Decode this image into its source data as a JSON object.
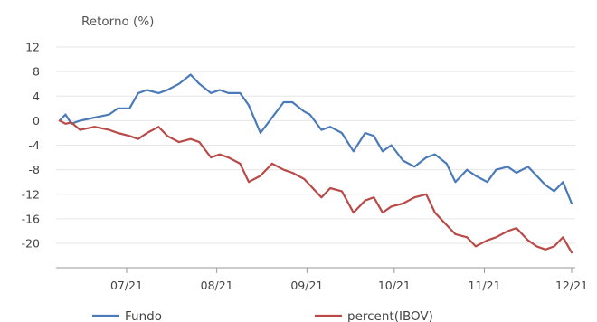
{
  "chart_data": {
    "type": "line",
    "title": "Retorno (%)",
    "xlabel": "",
    "ylabel": "",
    "ylim": [
      -22.5,
      12
    ],
    "yticks": [
      12,
      8,
      4,
      0,
      -4,
      -8,
      -12,
      -16,
      -20
    ],
    "ytick_labels": [
      "12",
      "8",
      "4",
      "0",
      "-4",
      "-8",
      "-12",
      "-16",
      "-20"
    ],
    "xlim": [
      "2021-06-08",
      "2021-12-01"
    ],
    "xticks": [
      "2021-07-01",
      "2021-08-01",
      "2021-09-01",
      "2021-10-01",
      "2021-11-01",
      "2021-12-01"
    ],
    "xtick_labels": [
      "07/21",
      "08/21",
      "09/21",
      "10/21",
      "11/21",
      "12/21"
    ],
    "grid": {
      "horizontal": true,
      "vertical": false
    },
    "legend": "bottom",
    "series": [
      {
        "name": "Fundo",
        "color": "#4a7ab8",
        "x": [
          "2021-06-08",
          "2021-06-10",
          "2021-06-12",
          "2021-06-15",
          "2021-06-20",
          "2021-06-25",
          "2021-06-28",
          "2021-07-02",
          "2021-07-05",
          "2021-07-08",
          "2021-07-12",
          "2021-07-15",
          "2021-07-19",
          "2021-07-23",
          "2021-07-26",
          "2021-07-30",
          "2021-08-02",
          "2021-08-05",
          "2021-08-09",
          "2021-08-12",
          "2021-08-16",
          "2021-08-20",
          "2021-08-24",
          "2021-08-27",
          "2021-08-31",
          "2021-09-02",
          "2021-09-06",
          "2021-09-09",
          "2021-09-13",
          "2021-09-17",
          "2021-09-21",
          "2021-09-24",
          "2021-09-27",
          "2021-09-30",
          "2021-10-04",
          "2021-10-08",
          "2021-10-12",
          "2021-10-15",
          "2021-10-19",
          "2021-10-22",
          "2021-10-26",
          "2021-10-29",
          "2021-11-02",
          "2021-11-05",
          "2021-11-09",
          "2021-11-12",
          "2021-11-16",
          "2021-11-19",
          "2021-11-22",
          "2021-11-25",
          "2021-11-28",
          "2021-12-01"
        ],
        "y": [
          0.0,
          1.0,
          -0.5,
          0.0,
          0.5,
          1.0,
          2.0,
          2.0,
          4.5,
          5.0,
          4.5,
          5.0,
          6.0,
          7.5,
          6.0,
          4.5,
          5.0,
          4.5,
          4.5,
          2.5,
          -2.0,
          0.5,
          3.0,
          3.0,
          1.5,
          1.0,
          -1.5,
          -1.0,
          -2.0,
          -5.0,
          -2.0,
          -2.5,
          -5.0,
          -4.0,
          -6.5,
          -7.5,
          -6.0,
          -5.5,
          -7.0,
          -10.0,
          -8.0,
          -9.0,
          -10.0,
          -8.0,
          -7.5,
          -8.5,
          -7.5,
          -9.0,
          -10.5,
          -11.5,
          -10.0,
          -13.5
        ]
      },
      {
        "name": "percent(IBOV)",
        "color": "#b94a48",
        "x": [
          "2021-06-08",
          "2021-06-10",
          "2021-06-12",
          "2021-06-15",
          "2021-06-20",
          "2021-06-25",
          "2021-06-28",
          "2021-07-02",
          "2021-07-05",
          "2021-07-08",
          "2021-07-12",
          "2021-07-15",
          "2021-07-19",
          "2021-07-23",
          "2021-07-26",
          "2021-07-30",
          "2021-08-02",
          "2021-08-05",
          "2021-08-09",
          "2021-08-12",
          "2021-08-16",
          "2021-08-20",
          "2021-08-24",
          "2021-08-27",
          "2021-08-31",
          "2021-09-02",
          "2021-09-06",
          "2021-09-09",
          "2021-09-13",
          "2021-09-17",
          "2021-09-21",
          "2021-09-24",
          "2021-09-27",
          "2021-09-30",
          "2021-10-04",
          "2021-10-08",
          "2021-10-12",
          "2021-10-15",
          "2021-10-19",
          "2021-10-22",
          "2021-10-26",
          "2021-10-29",
          "2021-11-02",
          "2021-11-05",
          "2021-11-09",
          "2021-11-12",
          "2021-11-16",
          "2021-11-19",
          "2021-11-22",
          "2021-11-25",
          "2021-11-28",
          "2021-12-01"
        ],
        "y": [
          0.0,
          -0.5,
          -0.3,
          -1.5,
          -1.0,
          -1.5,
          -2.0,
          -2.5,
          -3.0,
          -2.0,
          -1.0,
          -2.5,
          -3.5,
          -3.0,
          -3.5,
          -6.0,
          -5.5,
          -6.0,
          -7.0,
          -10.0,
          -9.0,
          -7.0,
          -8.0,
          -8.5,
          -9.5,
          -10.5,
          -12.5,
          -11.0,
          -11.5,
          -15.0,
          -13.0,
          -12.5,
          -15.0,
          -14.0,
          -13.5,
          -12.5,
          -12.0,
          -15.0,
          -17.0,
          -18.5,
          -19.0,
          -20.5,
          -19.5,
          -19.0,
          -18.0,
          -17.5,
          -19.5,
          -20.5,
          -21.0,
          -20.5,
          -19.0,
          -21.5
        ]
      }
    ]
  }
}
